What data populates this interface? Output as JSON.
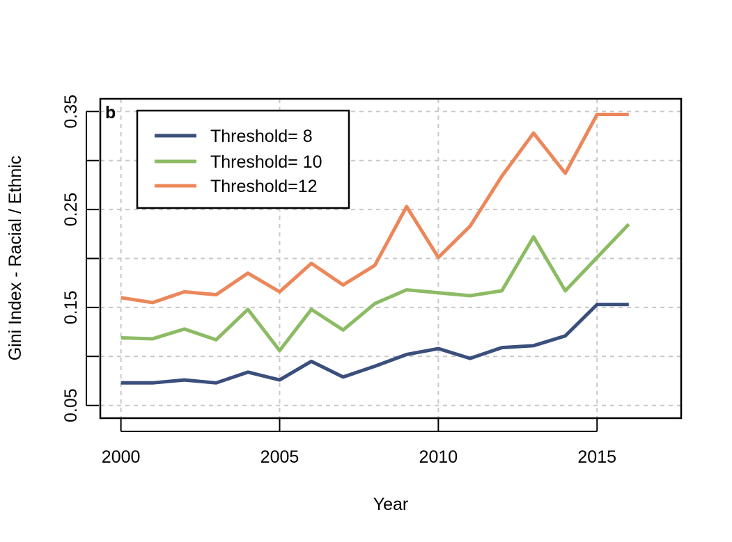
{
  "chart_data": {
    "type": "line",
    "panel_label": "b",
    "xlabel": "Year",
    "ylabel": "Gini Index - Racial / Ethnic",
    "xlim": [
      1999.35,
      2017.65
    ],
    "ylim": [
      0.037,
      0.363
    ],
    "xticks": [
      2000,
      2005,
      2010,
      2015
    ],
    "yticks": [
      0.05,
      0.15,
      0.25,
      0.35
    ],
    "xgrid": [
      2000,
      2005,
      2010,
      2015
    ],
    "ygrid": [
      0.05,
      0.1,
      0.15,
      0.2,
      0.25,
      0.3,
      0.35
    ],
    "grid": true,
    "legend_position": "top-left",
    "x": [
      2000,
      2001,
      2002,
      2003,
      2004,
      2005,
      2006,
      2007,
      2008,
      2009,
      2010,
      2011,
      2012,
      2013,
      2014,
      2015,
      2016
    ],
    "series": [
      {
        "name": "Threshold= 8",
        "color": "#3b4f7c",
        "values": [
          0.073,
          0.073,
          0.076,
          0.073,
          0.084,
          0.076,
          0.095,
          0.079,
          0.09,
          0.102,
          0.108,
          0.098,
          0.109,
          0.111,
          0.121,
          0.153,
          0.153
        ]
      },
      {
        "name": "Threshold= 10",
        "color": "#8cbb64",
        "values": [
          0.119,
          0.118,
          0.128,
          0.117,
          0.148,
          0.106,
          0.148,
          0.127,
          0.154,
          0.168,
          0.165,
          0.162,
          0.167,
          0.222,
          0.167,
          0.201,
          0.235
        ]
      },
      {
        "name": "Threshold=12",
        "color": "#ec875b",
        "values": [
          0.16,
          0.155,
          0.166,
          0.163,
          0.185,
          0.166,
          0.195,
          0.173,
          0.193,
          0.253,
          0.201,
          0.233,
          0.284,
          0.328,
          0.287,
          0.347,
          0.347
        ]
      }
    ]
  }
}
